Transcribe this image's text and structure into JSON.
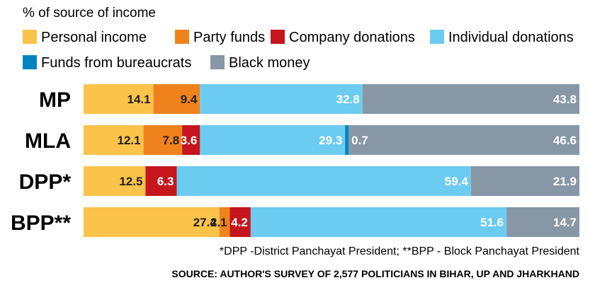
{
  "chart_data": {
    "type": "bar",
    "orientation": "horizontal",
    "stacked": true,
    "subtitle": "% of source of income",
    "categories": [
      "MP",
      "MLA",
      "DPP*",
      "BPP**"
    ],
    "series": [
      {
        "name": "Personal income",
        "color": "#fbc34a",
        "values": [
          14.1,
          12.1,
          12.5,
          27.4
        ]
      },
      {
        "name": "Party funds",
        "color": "#f0821e",
        "values": [
          9.4,
          7.8,
          null,
          2.1
        ]
      },
      {
        "name": "Company donations",
        "color": "#c4161c",
        "values": [
          null,
          3.6,
          6.3,
          4.2
        ]
      },
      {
        "name": "Individual donations",
        "color": "#6ccbf0",
        "values": [
          32.8,
          29.3,
          59.4,
          51.6
        ]
      },
      {
        "name": "Funds from bureaucrats",
        "color": "#0083c1",
        "values": [
          null,
          0.7,
          null,
          null
        ]
      },
      {
        "name": "Black money",
        "color": "#8797a5",
        "values": [
          43.8,
          46.6,
          21.9,
          14.7
        ]
      }
    ],
    "legend": "top",
    "grid": false
  },
  "footnote": "*DPP -District Panchayat President; **BPP - Block Panchayat President",
  "source": "SOURCE: AUTHOR'S SURVEY OF 2,577 POLITICIANS IN BIHAR, UP AND JHARKHAND"
}
